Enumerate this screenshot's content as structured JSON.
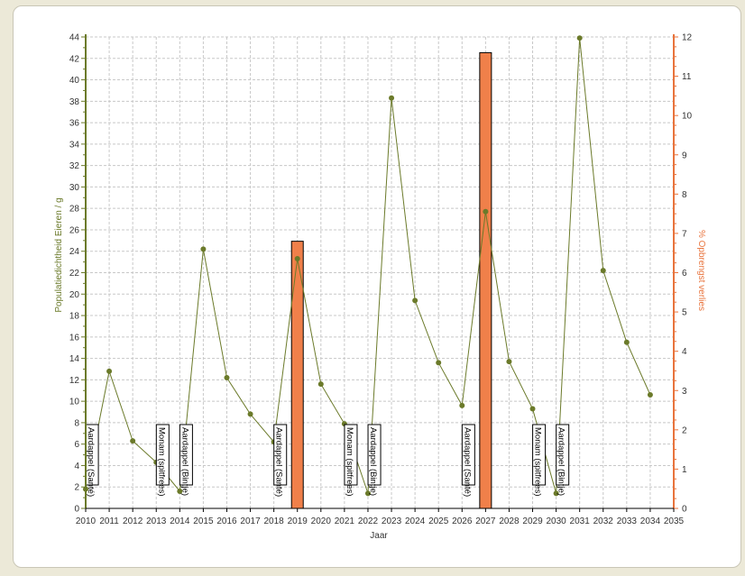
{
  "chart_data": {
    "type": "line",
    "xlabel": "Jaar",
    "ylabel_left": "Populatiedichtheid Eieren / g",
    "ylabel_right": "% Opbrengst verlies",
    "x_ticks": [
      2010,
      2011,
      2012,
      2013,
      2014,
      2015,
      2016,
      2017,
      2018,
      2019,
      2020,
      2021,
      2022,
      2023,
      2024,
      2025,
      2026,
      2027,
      2028,
      2029,
      2030,
      2031,
      2032,
      2033,
      2034,
      2035
    ],
    "y_left_ticks": [
      0,
      2,
      4,
      6,
      8,
      10,
      12,
      14,
      16,
      18,
      20,
      22,
      24,
      26,
      28,
      30,
      32,
      34,
      36,
      38,
      40,
      42,
      44
    ],
    "y_right_ticks": [
      0,
      1,
      2,
      3,
      4,
      5,
      6,
      7,
      8,
      9,
      10,
      11,
      12
    ],
    "xlim": [
      2010,
      2035
    ],
    "ylim_left": [
      0,
      44
    ],
    "ylim_right": [
      0,
      12
    ],
    "grid": true,
    "line_series": {
      "color": "#6b7a2a",
      "x": [
        2010,
        2011,
        2012,
        2013,
        2014,
        2015,
        2016,
        2017,
        2018,
        2019,
        2020,
        2021,
        2022,
        2023,
        2024,
        2025,
        2026,
        2027,
        2028,
        2029,
        2030,
        2031,
        2032,
        2033,
        2034
      ],
      "values": [
        1.8,
        12.8,
        6.3,
        4.3,
        1.6,
        24.2,
        12.2,
        8.8,
        6.2,
        23.3,
        11.6,
        7.9,
        1.4,
        38.3,
        19.4,
        13.6,
        9.6,
        27.7,
        13.7,
        9.3,
        1.4,
        43.9,
        22.2,
        15.5,
        10.6
      ]
    },
    "bar_series": {
      "color": "#f0804a",
      "x": [
        2019,
        2027
      ],
      "values": [
        6.8,
        11.6
      ]
    },
    "crop_labels": [
      {
        "x": 2011,
        "label": "Aardappel (Santé)"
      },
      {
        "x": 2014,
        "label": "Monam (spitfrees)"
      },
      {
        "x": 2015,
        "label": "Aardappel (Bintje)"
      },
      {
        "x": 2019,
        "label": "Aardappel (Santé)"
      },
      {
        "x": 2022,
        "label": "Monam (spitfrees)"
      },
      {
        "x": 2023,
        "label": "Aardappel (Bintje)"
      },
      {
        "x": 2027,
        "label": "Aardappel (Santé)"
      },
      {
        "x": 2030,
        "label": "Monam (spitfrees)"
      },
      {
        "x": 2031,
        "label": "Aardappel (Bintje)"
      }
    ],
    "colors": {
      "left_axis": "#6b7a2a",
      "right_axis": "#e8733c",
      "grid": "#c8c8c8"
    }
  }
}
